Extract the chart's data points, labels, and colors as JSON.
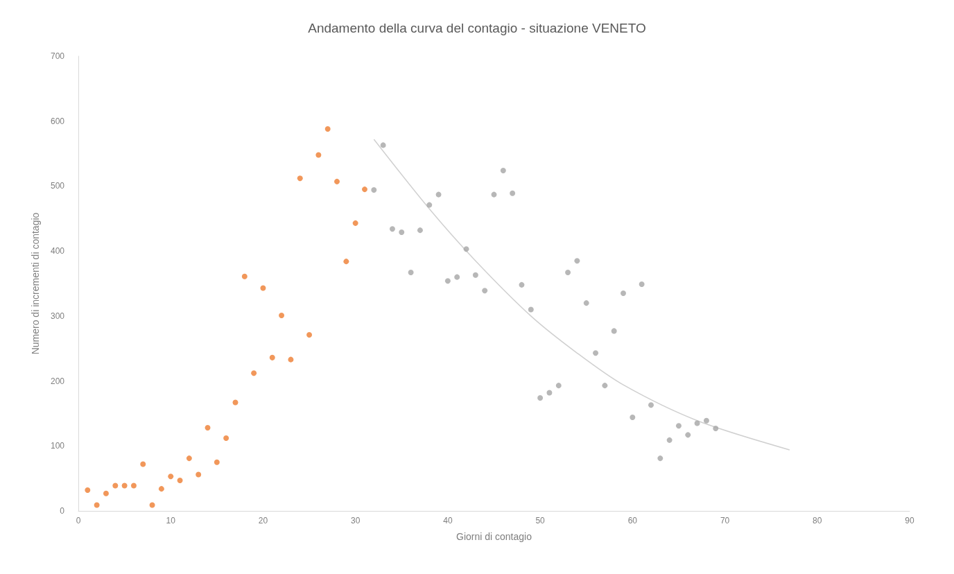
{
  "chart_data": {
    "type": "scatter",
    "title": "Andamento della curva del contagio - situazione VENETO",
    "xlabel": "Giorni di contagio",
    "ylabel": "Numero di incrementi di contagio",
    "xlim": [
      0,
      90
    ],
    "xticks": [
      0,
      10,
      20,
      30,
      40,
      50,
      60,
      70,
      80,
      90
    ],
    "ylim": [
      0,
      700
    ],
    "yticks": [
      0,
      100,
      200,
      300,
      400,
      500,
      600,
      700
    ],
    "marker": "circle",
    "series": [
      {
        "color": "#ed7d31",
        "x": [
          1,
          2,
          3,
          4,
          5,
          6,
          7,
          8,
          9,
          10,
          11,
          12,
          13,
          14,
          15,
          16,
          17,
          18,
          19,
          20,
          21,
          22,
          23,
          24,
          25,
          26,
          27,
          28,
          29,
          30,
          31
        ],
        "values": [
          32,
          9,
          27,
          39,
          39,
          39,
          72,
          9,
          34,
          53,
          47,
          81,
          56,
          128,
          75,
          112,
          167,
          361,
          212,
          343,
          236,
          301,
          233,
          512,
          271,
          548,
          588,
          507,
          384,
          443,
          495
        ]
      },
      {
        "color": "#a5a5a5",
        "x": [
          32,
          33,
          34,
          35,
          36,
          37,
          38,
          39,
          40,
          41,
          42,
          43,
          44,
          45,
          46,
          47,
          48,
          49,
          50,
          51,
          52,
          53,
          54,
          55,
          56,
          57,
          58,
          59,
          60,
          61,
          62,
          63,
          64,
          65,
          66,
          67,
          68,
          69
        ],
        "values": [
          494,
          563,
          434,
          429,
          367,
          432,
          471,
          487,
          354,
          360,
          403,
          363,
          339,
          487,
          524,
          489,
          348,
          310,
          174,
          182,
          193,
          367,
          385,
          320,
          243,
          193,
          277,
          335,
          144,
          349,
          163,
          81,
          109,
          131,
          117,
          135,
          139,
          127
        ]
      },
      {
        "type": "line",
        "color": "#d0d0d0",
        "marker": "none",
        "x": [
          32,
          38,
          43,
          49,
          54,
          59,
          67,
          77
        ],
        "values": [
          572,
          465,
          385,
          300,
          243,
          194,
          139,
          94
        ]
      }
    ]
  }
}
